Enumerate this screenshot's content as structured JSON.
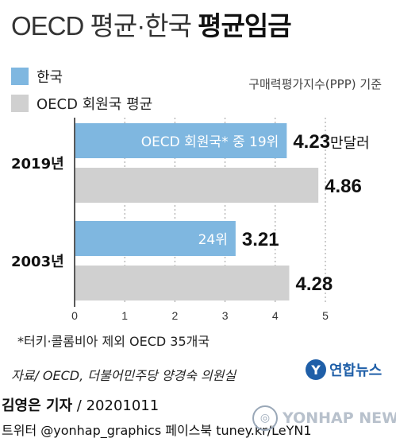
{
  "header": {
    "title_main": "OECD 평균·한국 ",
    "title_bold": "평균임금"
  },
  "legend": {
    "items": [
      {
        "label": "한국",
        "color": "#7fb7e0"
      },
      {
        "label": "OECD 회원국 평균",
        "color": "#d0d0d0"
      }
    ]
  },
  "basis_note": "구매력평가지수(PPP) 기준",
  "chart_data": {
    "type": "bar",
    "orientation": "horizontal",
    "categories": [
      "2019년",
      "2003년"
    ],
    "series": [
      {
        "name": "한국",
        "values": [
          4.23,
          3.21
        ],
        "color": "#7fb7e0"
      },
      {
        "name": "OECD 회원국 평균",
        "values": [
          4.86,
          4.28
        ],
        "color": "#d0d0d0"
      }
    ],
    "value_labels": {
      "한국": [
        "4.23",
        "3.21"
      ],
      "OECD 회원국 평균": [
        "4.86",
        "4.28"
      ]
    },
    "unit_suffix": "만달러",
    "inside_labels": [
      "OECD 회원국* 중 19위",
      "24위"
    ],
    "xlim": [
      0,
      5
    ],
    "xticks": [
      0,
      1,
      2,
      3,
      4,
      5
    ],
    "grid": "vertical dashed"
  },
  "footnote": "*터키·콜롬비아 제외 OECD 35개국",
  "source": "자료/ OECD, 더불어민주당 양경숙 의원실",
  "logo": {
    "mark": "Y",
    "text": "연합뉴스"
  },
  "footer": {
    "byline_name": "김영은 기자",
    "byline_date": " / 20201011",
    "social": "트위터 @yonhap_graphics  페이스북 tuney.kr/LeYN1",
    "watermark": "YONHAP NEWS"
  }
}
